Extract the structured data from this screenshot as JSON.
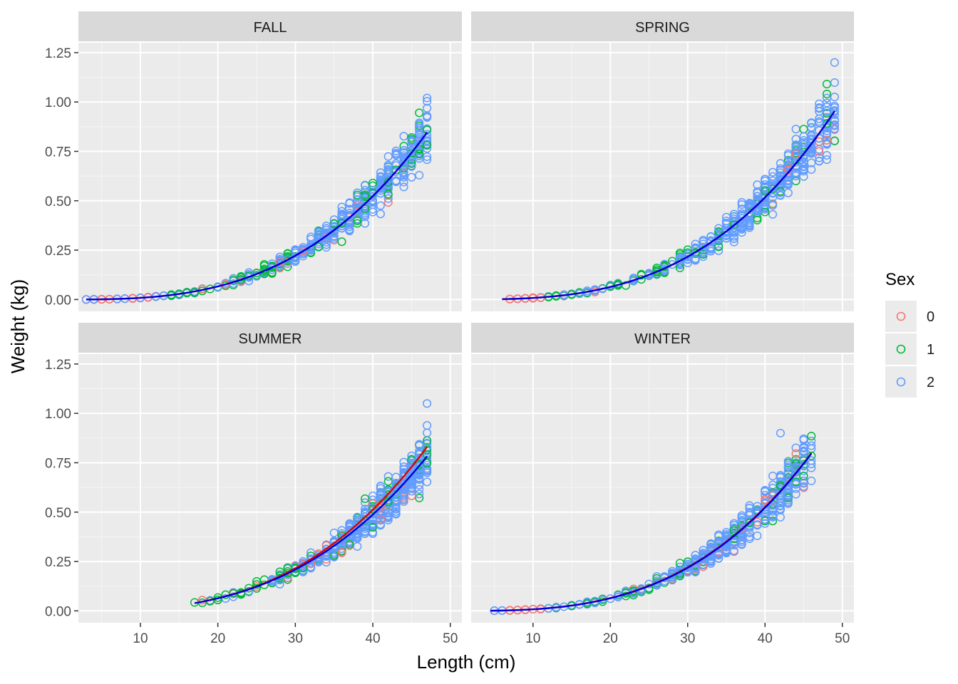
{
  "chart_data": {
    "type": "scatter",
    "facet_by": "Season",
    "xlabel": "Length (cm)",
    "ylabel": "Weight (kg)",
    "x_ticks": [
      10,
      20,
      30,
      40,
      50
    ],
    "y_ticks": [
      0.0,
      0.25,
      0.5,
      0.75,
      1.0,
      1.25
    ],
    "y_tick_labels": [
      "0.00",
      "0.25",
      "0.50",
      "0.75",
      "1.00",
      "1.25"
    ],
    "xlim": [
      2,
      51.5
    ],
    "ylim": [
      -0.06,
      1.3
    ],
    "grid": true,
    "legend": {
      "title": "Sex",
      "position": "right",
      "entries": [
        {
          "label": "0",
          "color": "#F8766D"
        },
        {
          "label": "1",
          "color": "#00BA38"
        },
        {
          "label": "2",
          "color": "#619CFF"
        }
      ]
    },
    "fit_lines": {
      "style": "power curve weight = a * length^b",
      "colors": {
        "line_a": "#e00000",
        "line_b": "#0000dd"
      }
    },
    "panels": [
      {
        "title": "FALL",
        "x_range": [
          3,
          47
        ],
        "fit_a": {
          "a": 8.8e-06,
          "b": 2.98
        },
        "fit_b": {
          "a": 8.8e-06,
          "b": 2.98
        },
        "max_point": {
          "x": 47,
          "y": 0.93
        }
      },
      {
        "title": "SPRING",
        "x_range": [
          6,
          49
        ],
        "fit_a": {
          "a": 7.5e-06,
          "b": 3.02
        },
        "fit_b": {
          "a": 7.5e-06,
          "b": 3.02
        },
        "max_point": {
          "x": 49,
          "y": 1.2
        }
      },
      {
        "title": "SUMMER",
        "x_range": [
          17,
          47
        ],
        "fit_a": {
          "a": 8e-06,
          "b": 3.0
        },
        "fit_b": {
          "a": 9.5e-06,
          "b": 2.94
        },
        "max_point": {
          "x": 47,
          "y": 1.05
        }
      },
      {
        "title": "WINTER",
        "x_range": [
          4.5,
          46
        ],
        "fit_a": {
          "a": 7.9e-06,
          "b": 3.01
        },
        "fit_b": {
          "a": 7.3e-06,
          "b": 3.03
        },
        "max_point": {
          "x": 42,
          "y": 0.9
        }
      }
    ]
  }
}
